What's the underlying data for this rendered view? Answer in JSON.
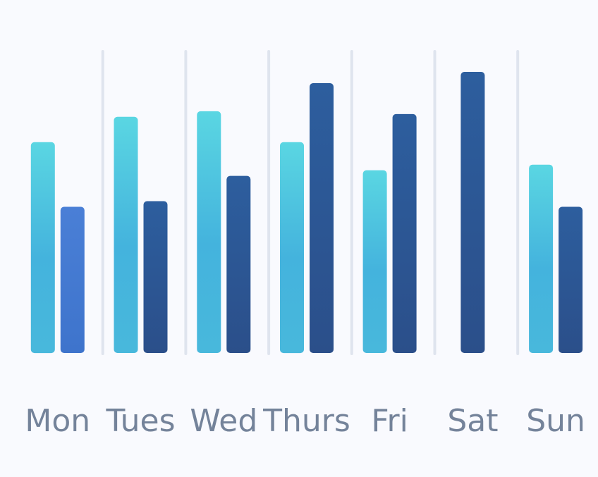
{
  "chart_data": {
    "type": "bar",
    "categories": [
      "Mon",
      "Tues",
      "Wed",
      "Thurs",
      "Fri",
      "Sat",
      "Sun"
    ],
    "series": [
      {
        "values": [
          75,
          84,
          86,
          75,
          65,
          null,
          67
        ],
        "color": "#4fd0de"
      },
      {
        "values": [
          52,
          54,
          63,
          96,
          85,
          100,
          52
        ],
        "color": "#2e5a9a"
      }
    ],
    "ylim": [
      0,
      100
    ],
    "grid": {
      "vertical_separators": true,
      "horizontal": false
    },
    "legend": "none"
  }
}
